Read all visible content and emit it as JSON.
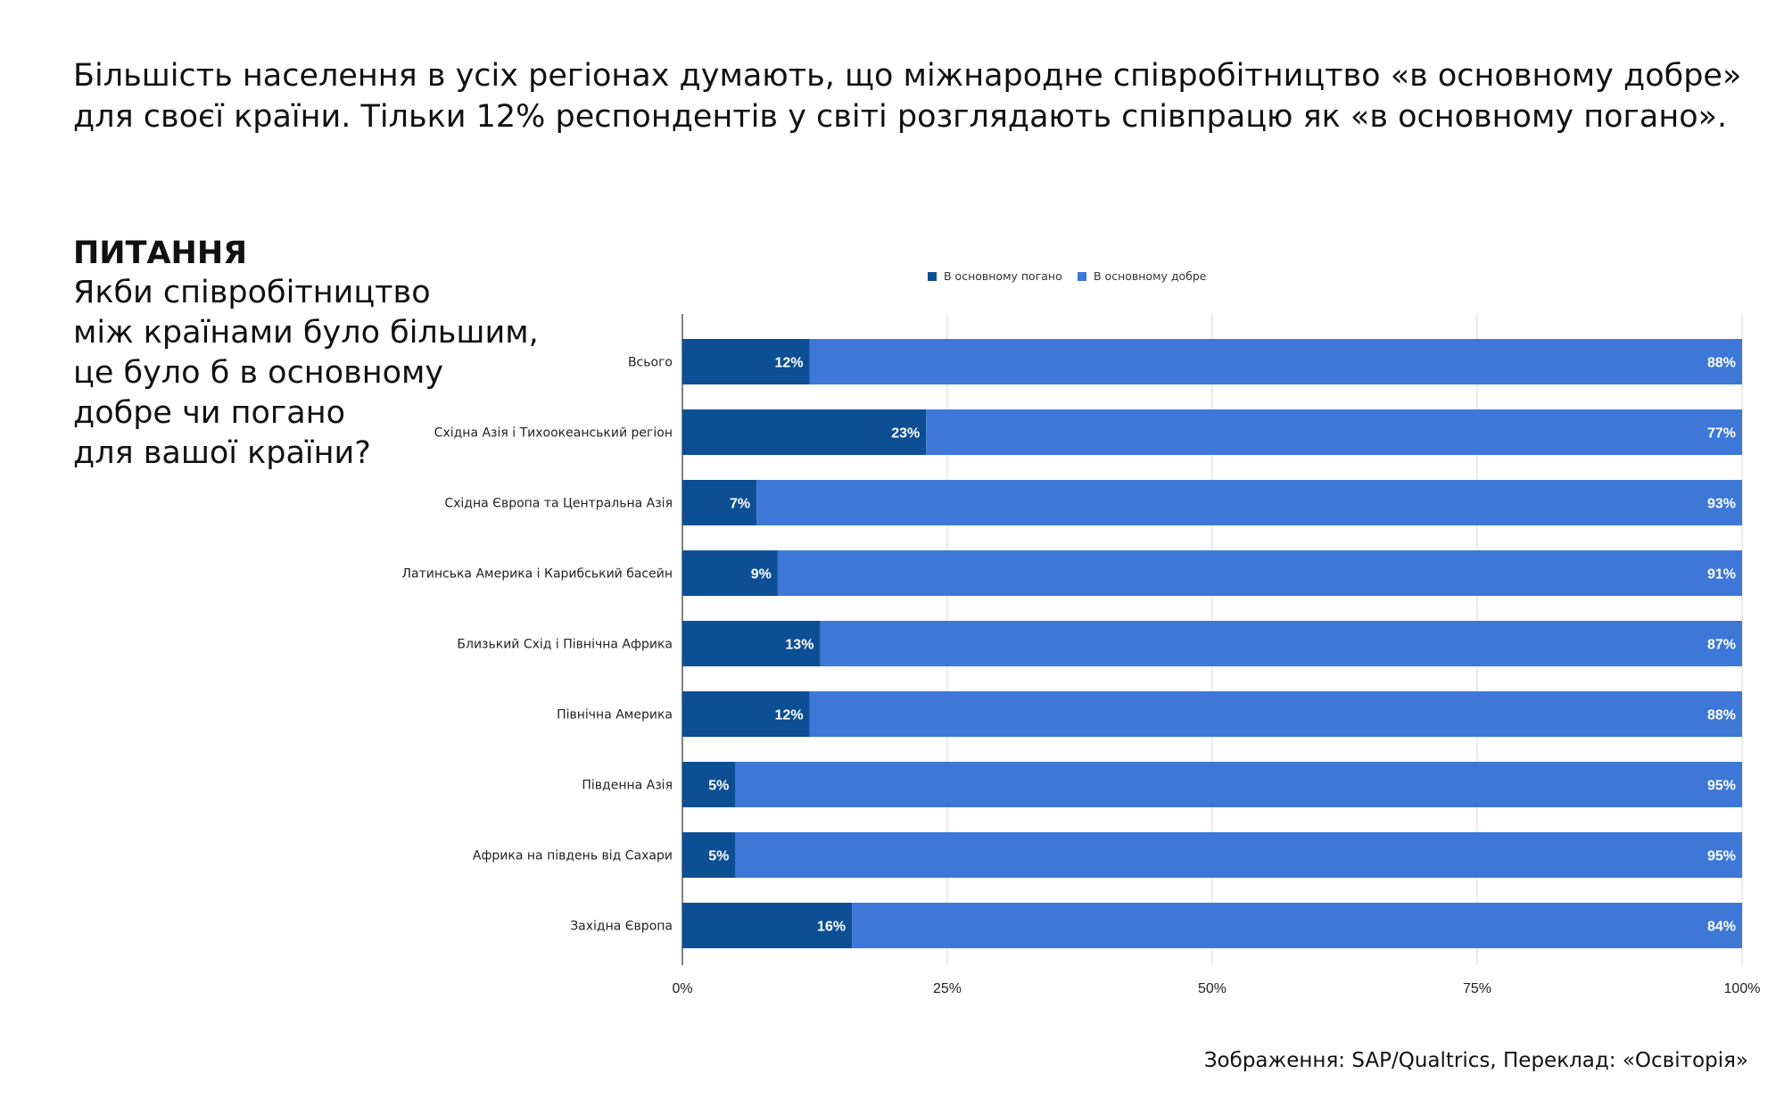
{
  "headline": [
    "Більшість населення в усіх регіонах думають, що міжнародне співробітництво «в основному добре»",
    "для своєї країни. Тільки 12% респондентів у світі розглядають співпрацю як «в основному погано»."
  ],
  "question": {
    "title": "ПИТАННЯ",
    "lines": [
      "Якби співробітництво",
      "між країнами було більшим,",
      "це було б в основному",
      "добре чи погано",
      "для вашої країни?"
    ]
  },
  "credit": "Зображення: SAP/Qualtrics, Переклад: «Освіторія»",
  "chart_data": {
    "type": "bar",
    "orientation": "horizontal",
    "stacked": true,
    "categories": [
      "Всього",
      "Східна Азія і Тихоокеанський регіон",
      "Східна Європа та Центральна Азія",
      "Латинська Америка і Карибський басейн",
      "Близький Схід і Північна Африка",
      "Північна Америка",
      "Південна Азія",
      "Африка на південь від Сахари",
      "Західна Європа"
    ],
    "series": [
      {
        "name": "В основному погано",
        "color": "#0d4f94",
        "values": [
          12,
          23,
          7,
          9,
          13,
          12,
          5,
          5,
          16
        ],
        "labels": [
          "12%",
          "23%",
          "7%",
          "9%",
          "13%",
          "12%",
          "5%",
          "5%",
          "16%"
        ]
      },
      {
        "name": "В основному добре",
        "color": "#3d78d8",
        "values": [
          88,
          77,
          93,
          91,
          87,
          88,
          95,
          95,
          84
        ],
        "labels": [
          "88%",
          "77%",
          "93%",
          "91%",
          "87%",
          "88%",
          "95%",
          "95%",
          "84%"
        ]
      }
    ],
    "xlim": [
      0,
      100
    ],
    "xticks": [
      0,
      25,
      50,
      75,
      100
    ],
    "xtick_labels": [
      "0%",
      "25%",
      "50%",
      "75%",
      "100%"
    ],
    "grid": true,
    "legend_position": "top"
  }
}
